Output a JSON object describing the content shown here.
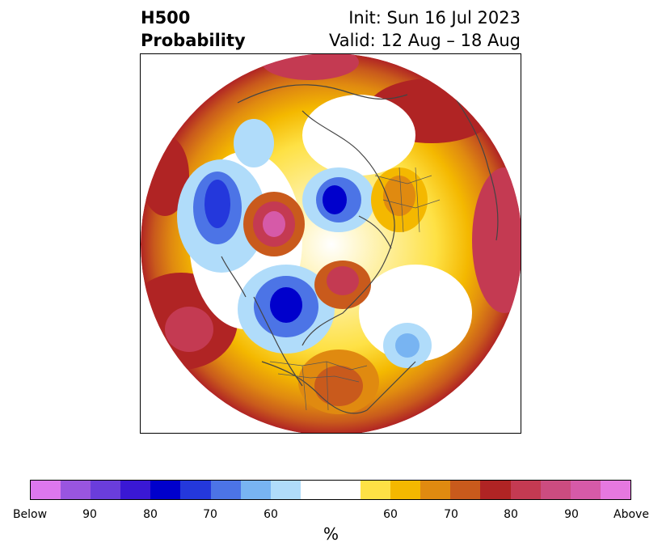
{
  "title": {
    "left_line1": "H500",
    "left_line2": "Probability",
    "right_line1": "Init: Sun 16 Jul 2023",
    "right_line2": "Valid: 12 Aug – 18 Aug"
  },
  "colorbar": {
    "unit": "%",
    "ticks": [
      "Below",
      "90",
      "80",
      "70",
      "60",
      "60",
      "70",
      "80",
      "90",
      "Above"
    ],
    "segments": [
      {
        "color": "#dd77ee",
        "w": 1
      },
      {
        "color": "#9955e0",
        "w": 1
      },
      {
        "color": "#6a3ddb",
        "w": 1
      },
      {
        "color": "#3a18d4",
        "w": 1
      },
      {
        "color": "#0000cc",
        "w": 1
      },
      {
        "color": "#2438dc",
        "w": 1
      },
      {
        "color": "#4c74e6",
        "w": 1
      },
      {
        "color": "#78b4f2",
        "w": 1
      },
      {
        "color": "#b0dcfa",
        "w": 1
      },
      {
        "color": "#ffffff",
        "w": 2
      },
      {
        "color": "#fee145",
        "w": 1
      },
      {
        "color": "#f4b800",
        "w": 1
      },
      {
        "color": "#e08a10",
        "w": 1
      },
      {
        "color": "#c95a1c",
        "w": 1
      },
      {
        "color": "#b02424",
        "w": 1
      },
      {
        "color": "#c43a52",
        "w": 1
      },
      {
        "color": "#cc4c80",
        "w": 1
      },
      {
        "color": "#d65aa8",
        "w": 1
      },
      {
        "color": "#e678e0",
        "w": 1
      }
    ]
  }
}
